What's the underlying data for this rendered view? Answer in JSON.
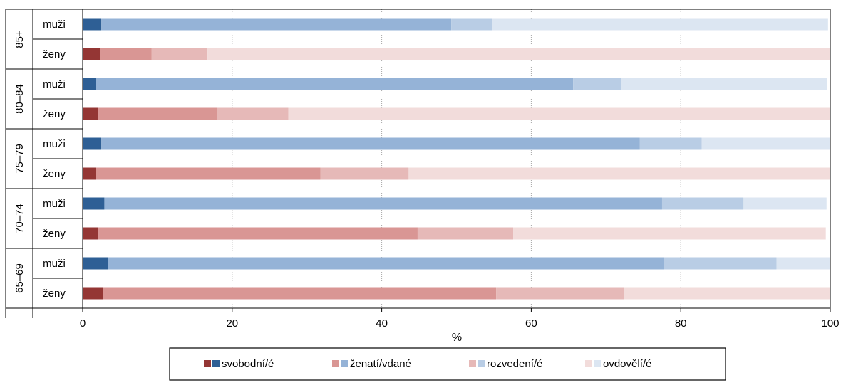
{
  "chart_data": {
    "type": "bar",
    "orientation": "horizontal",
    "stacked": true,
    "xlabel": "%",
    "xlim": [
      0,
      100
    ],
    "xticks": [
      0,
      20,
      40,
      60,
      80,
      100
    ],
    "grid": "vertical dotted",
    "legend_position": "bottom",
    "groups": [
      "85+",
      "80–84",
      "75–79",
      "70–74",
      "65–69"
    ],
    "rows": [
      {
        "group": "85+",
        "label": "muži",
        "sex": "male",
        "values": [
          2.5,
          46.8,
          5.5,
          44.9
        ]
      },
      {
        "group": "85+",
        "label": "ženy",
        "sex": "female",
        "values": [
          2.3,
          6.9,
          7.5,
          83.3
        ]
      },
      {
        "group": "80–84",
        "label": "muži",
        "sex": "male",
        "values": [
          1.8,
          63.8,
          6.4,
          27.6
        ]
      },
      {
        "group": "80–84",
        "label": "ženy",
        "sex": "female",
        "values": [
          2.1,
          15.9,
          9.5,
          72.5
        ]
      },
      {
        "group": "75–79",
        "label": "muži",
        "sex": "male",
        "values": [
          2.5,
          72.0,
          8.3,
          17.2
        ]
      },
      {
        "group": "75–79",
        "label": "ženy",
        "sex": "female",
        "values": [
          1.8,
          30.0,
          11.8,
          56.4
        ]
      },
      {
        "group": "70–74",
        "label": "muži",
        "sex": "male",
        "values": [
          2.9,
          74.6,
          10.9,
          11.1
        ]
      },
      {
        "group": "70–74",
        "label": "ženy",
        "sex": "female",
        "values": [
          2.1,
          42.7,
          12.8,
          41.8
        ]
      },
      {
        "group": "65–69",
        "label": "muži",
        "sex": "male",
        "values": [
          3.4,
          74.3,
          15.1,
          7.2
        ]
      },
      {
        "group": "65–69",
        "label": "ženy",
        "sex": "female",
        "values": [
          2.7,
          52.6,
          17.1,
          27.6
        ]
      }
    ],
    "series": [
      {
        "name": "svobodní/é",
        "male_color": "#2E5F95",
        "female_color": "#943634"
      },
      {
        "name": "ženatí/vdané",
        "male_color": "#95B3D7",
        "female_color": "#D99694"
      },
      {
        "name": "rozvedení/é",
        "male_color": "#B9CDE5",
        "female_color": "#E6B9B8"
      },
      {
        "name": "ovdovělí/é",
        "male_color": "#DCE6F2",
        "female_color": "#F2DCDB"
      }
    ]
  }
}
